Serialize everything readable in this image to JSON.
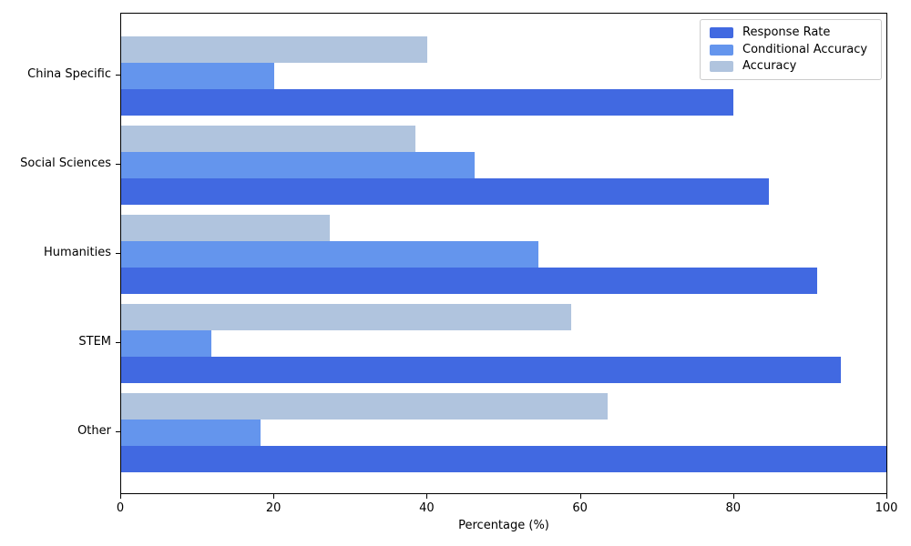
{
  "chart_data": {
    "type": "bar",
    "orientation": "horizontal",
    "title": "",
    "categories": [
      "China Specific",
      "Social Sciences",
      "Humanities",
      "STEM",
      "Other"
    ],
    "series": [
      {
        "name": "Response Rate",
        "color": "#4169E1",
        "values": [
          80.0,
          84.6,
          90.9,
          94.1,
          100.0
        ]
      },
      {
        "name": "Conditional Accuracy",
        "color": "#6495ED",
        "values": [
          20.0,
          46.2,
          54.5,
          11.8,
          18.2
        ]
      },
      {
        "name": "Accuracy",
        "color": "#B0C4DE",
        "values": [
          40.0,
          38.5,
          27.3,
          58.8,
          63.6
        ]
      }
    ],
    "bar_order_top_to_bottom_in_group": [
      "Accuracy",
      "Conditional Accuracy",
      "Response Rate"
    ],
    "xlabel": "Percentage (%)",
    "xlim": [
      0,
      100
    ],
    "xticks": [
      0,
      20,
      40,
      60,
      80,
      100
    ],
    "legend": {
      "position": "upper-right",
      "items": [
        "Response Rate",
        "Conditional Accuracy",
        "Accuracy"
      ]
    },
    "grid": false,
    "axis_color": "#000000",
    "background": "#ffffff"
  }
}
